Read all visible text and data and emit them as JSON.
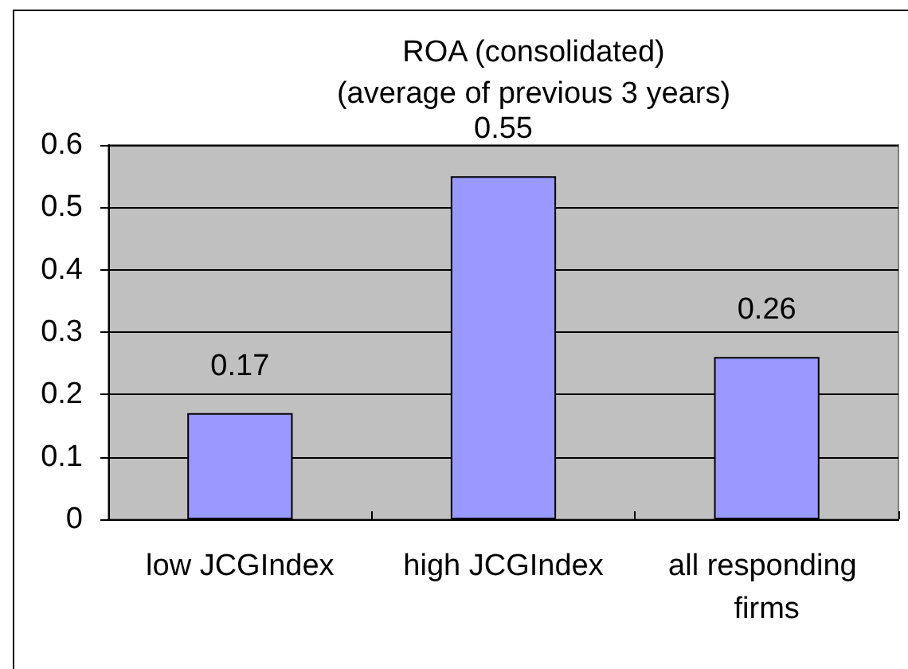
{
  "chart_data": {
    "type": "bar",
    "title": "ROA (consolidated)\n(average of previous 3 years)",
    "categories": [
      "low JCGIndex",
      "high JCGIndex",
      "all responding firms"
    ],
    "values": [
      0.17,
      0.55,
      0.26
    ],
    "color": "#9999ff",
    "ylim": [
      0,
      0.6
    ],
    "yticks": [
      0,
      0.1,
      0.2,
      0.3,
      0.4,
      0.5,
      0.6
    ],
    "grid": "y",
    "data_labels": true
  }
}
